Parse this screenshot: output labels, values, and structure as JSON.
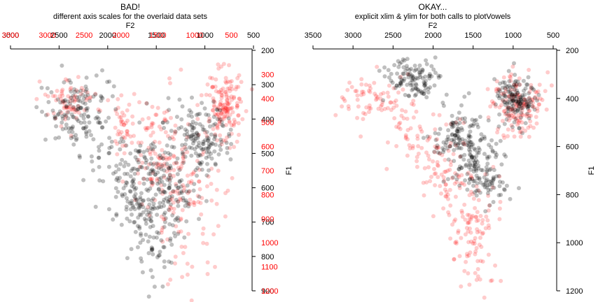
{
  "panels": [
    {
      "title": "BAD!",
      "subtitle": "different axis scales for the overlaid data sets",
      "xlabel": "F2",
      "ylabel": "F1"
    },
    {
      "title": "OKAY...",
      "subtitle": "explicit xlim & ylim for both calls to plotVowels",
      "xlabel": "F2",
      "ylabel": "F1"
    }
  ],
  "chart_data": [
    {
      "type": "scatter",
      "title": "BAD!",
      "subtitle": "different axis scales for the overlaid data sets",
      "xlabel": "F2",
      "ylabel": "F1",
      "x_axis_position": "top",
      "y_axis_position": "right",
      "x_reversed": true,
      "y_reversed": true,
      "grid": false,
      "colors": {
        "black": "#000000",
        "red": "#ff0000"
      },
      "axes": [
        {
          "series": "black",
          "xlim": [
            3000,
            500
          ],
          "ylim": [
            200,
            900
          ],
          "xticks": [
            "3000",
            "2500",
            "2000",
            "1500",
            "1000",
            "500"
          ],
          "yticks": [
            "200",
            "300",
            "400",
            "500",
            "600",
            "700",
            "800",
            "900"
          ]
        },
        {
          "series": "red",
          "xlim": [
            3500,
            200
          ],
          "ylim": [
            200,
            1200
          ],
          "xticks": [
            "3500",
            "3000",
            "2500",
            "2000",
            "1500",
            "1000",
            "500"
          ],
          "yticks": [
            "300",
            "400",
            "500",
            "600",
            "700",
            "800",
            "900",
            "1000",
            "1100",
            "1200"
          ]
        }
      ],
      "clusters": {
        "black": [
          {
            "x": 2300,
            "y": 380,
            "sx": 180,
            "sy": 50,
            "n": 140
          },
          {
            "x": 1850,
            "y": 560,
            "sx": 140,
            "sy": 60,
            "n": 60
          },
          {
            "x": 1650,
            "y": 640,
            "sx": 130,
            "sy": 70,
            "n": 100
          },
          {
            "x": 1400,
            "y": 560,
            "sx": 170,
            "sy": 90,
            "n": 90
          },
          {
            "x": 1300,
            "y": 620,
            "sx": 150,
            "sy": 90,
            "n": 70
          },
          {
            "x": 1000,
            "y": 450,
            "sx": 130,
            "sy": 50,
            "n": 130
          },
          {
            "x": 1550,
            "y": 760,
            "sx": 110,
            "sy": 60,
            "n": 30
          }
        ],
        "red": [
          {
            "x": 2700,
            "y": 420,
            "sx": 200,
            "sy": 60,
            "n": 70
          },
          {
            "x": 2000,
            "y": 520,
            "sx": 120,
            "sy": 60,
            "n": 40
          },
          {
            "x": 1500,
            "y": 650,
            "sx": 180,
            "sy": 120,
            "n": 100
          },
          {
            "x": 1100,
            "y": 800,
            "sx": 220,
            "sy": 180,
            "n": 120
          },
          {
            "x": 600,
            "y": 420,
            "sx": 120,
            "sy": 80,
            "n": 150
          }
        ]
      }
    },
    {
      "type": "scatter",
      "title": "OKAY...",
      "subtitle": "explicit xlim & ylim for both calls to plotVowels",
      "xlabel": "F2",
      "ylabel": "F1",
      "x_axis_position": "top",
      "y_axis_position": "right",
      "x_reversed": true,
      "y_reversed": true,
      "grid": false,
      "colors": {
        "black": "#000000",
        "red": "#ff0000"
      },
      "axes": [
        {
          "series": "both",
          "xlim": [
            3500,
            500
          ],
          "ylim": [
            200,
            1200
          ],
          "xticks": [
            "3500",
            "3000",
            "2500",
            "2000",
            "1500",
            "1000",
            "500"
          ],
          "yticks": [
            "200",
            "400",
            "600",
            "800",
            "1000",
            "1200"
          ]
        }
      ],
      "clusters": {
        "black": [
          {
            "x": 2250,
            "y": 320,
            "sx": 170,
            "sy": 40,
            "n": 120
          },
          {
            "x": 1700,
            "y": 560,
            "sx": 160,
            "sy": 60,
            "n": 100
          },
          {
            "x": 1450,
            "y": 660,
            "sx": 160,
            "sy": 70,
            "n": 110
          },
          {
            "x": 950,
            "y": 410,
            "sx": 140,
            "sy": 50,
            "n": 150
          },
          {
            "x": 1300,
            "y": 760,
            "sx": 120,
            "sy": 40,
            "n": 40
          }
        ],
        "red": [
          {
            "x": 2750,
            "y": 400,
            "sx": 230,
            "sy": 60,
            "n": 70
          },
          {
            "x": 2300,
            "y": 520,
            "sx": 170,
            "sy": 80,
            "n": 40
          },
          {
            "x": 1850,
            "y": 700,
            "sx": 150,
            "sy": 110,
            "n": 80
          },
          {
            "x": 1500,
            "y": 950,
            "sx": 170,
            "sy": 120,
            "n": 110
          },
          {
            "x": 950,
            "y": 420,
            "sx": 160,
            "sy": 70,
            "n": 150
          }
        ]
      }
    }
  ]
}
